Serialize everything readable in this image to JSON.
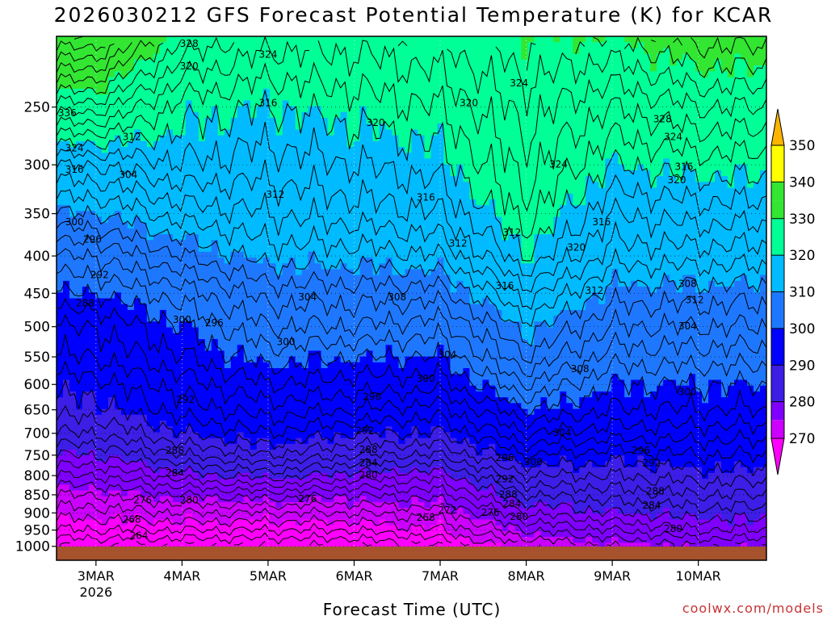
{
  "title": "2026030212 GFS Forecast Potential Temperature (K) for KCAR",
  "xlabel": "Forecast Time (UTC)",
  "credit": "coolwx.com/models",
  "chart_data": {
    "type": "contour",
    "title": "2026030212 GFS Forecast Potential Temperature (K) for KCAR",
    "xlabel": "Forecast Time (UTC)",
    "ylabel": "",
    "y_axis": "pressure (hPa), log scale, inverted",
    "ylim": [
      1000,
      200
    ],
    "y_ticks": [
      250,
      300,
      350,
      400,
      450,
      500,
      550,
      600,
      650,
      700,
      750,
      800,
      850,
      900,
      950,
      1000
    ],
    "x_ticks": [
      "3MAR",
      "4MAR",
      "5MAR",
      "6MAR",
      "7MAR",
      "8MAR",
      "9MAR",
      "10MAR"
    ],
    "x_ticks_sub": [
      "2026",
      "",
      "",
      "",
      "",
      "",
      "",
      ""
    ],
    "colorbar": {
      "labels": [
        270,
        280,
        290,
        300,
        310,
        320,
        330,
        340,
        350
      ],
      "colors": [
        "#ff00ff",
        "#cc00ff",
        "#8000ff",
        "#3c1ee6",
        "#0000ff",
        "#1e78ff",
        "#00bbff",
        "#00ff96",
        "#32e632",
        "#b4ff1e",
        "#ffff00",
        "#ffb400"
      ],
      "extend": "both"
    },
    "grid": true,
    "contour_interval": 2,
    "profiles_x": [
      0,
      24,
      48,
      72,
      96,
      120,
      144,
      168,
      186
    ],
    "profiles": [
      {
        "x": 0,
        "p": [
          1000,
          950,
          900,
          850,
          800,
          750,
          700,
          650,
          600,
          550,
          500,
          450,
          400,
          350,
          300,
          250,
          200
        ],
        "theta": [
          264,
          268,
          271,
          274,
          278,
          282,
          286,
          289,
          291,
          294,
          296,
          300,
          304,
          310,
          316,
          327,
          340
        ]
      },
      {
        "x": 24,
        "p": [
          1000,
          950,
          900,
          850,
          800,
          750,
          700,
          650,
          600,
          550,
          500,
          450,
          400,
          350,
          300,
          250,
          200
        ],
        "theta": [
          264,
          268,
          272,
          276,
          281,
          286,
          290,
          293,
          295,
          298,
          300,
          303,
          308,
          313,
          318,
          321,
          328
        ]
      },
      {
        "x": 48,
        "p": [
          1000,
          950,
          900,
          850,
          800,
          750,
          700,
          650,
          600,
          550,
          500,
          450,
          400,
          350,
          300,
          250,
          200
        ],
        "theta": [
          264,
          268,
          272,
          277,
          283,
          288,
          292,
          295,
          298,
          301,
          304,
          307,
          311,
          314,
          317,
          320,
          325
        ]
      },
      {
        "x": 72,
        "p": [
          1000,
          950,
          900,
          850,
          800,
          750,
          700,
          650,
          600,
          550,
          500,
          450,
          400,
          350,
          300,
          250,
          200
        ],
        "theta": [
          264,
          268,
          272,
          276,
          281,
          286,
          290,
          294,
          297,
          300,
          304,
          307,
          311,
          315,
          318,
          321,
          325
        ]
      },
      {
        "x": 96,
        "p": [
          1000,
          950,
          900,
          850,
          800,
          750,
          700,
          650,
          600,
          550,
          500,
          450,
          400,
          350,
          300,
          250,
          200
        ],
        "theta": [
          266,
          270,
          273,
          277,
          281,
          286,
          290,
          293,
          297,
          300,
          303,
          307,
          312,
          316,
          319,
          322,
          326
        ]
      },
      {
        "x": 120,
        "p": [
          1000,
          950,
          900,
          850,
          800,
          750,
          700,
          650,
          600,
          550,
          500,
          450,
          400,
          350,
          300,
          250,
          200
        ],
        "theta": [
          272,
          276,
          280,
          284,
          288,
          292,
          296,
          300,
          304,
          308,
          311,
          315,
          320,
          323,
          325,
          327,
          330
        ]
      },
      {
        "x": 144,
        "p": [
          1000,
          950,
          900,
          850,
          800,
          750,
          700,
          650,
          600,
          550,
          500,
          450,
          400,
          350,
          300,
          250,
          200
        ],
        "theta": [
          274,
          278,
          282,
          285,
          288,
          291,
          295,
          298,
          300,
          303,
          306,
          309,
          313,
          316,
          320,
          324,
          330
        ]
      },
      {
        "x": 168,
        "p": [
          1000,
          950,
          900,
          850,
          800,
          750,
          700,
          650,
          600,
          550,
          500,
          450,
          400,
          350,
          300,
          250,
          200
        ],
        "theta": [
          276,
          280,
          283,
          286,
          289,
          292,
          295,
          298,
          300,
          303,
          306,
          309,
          313,
          317,
          321,
          326,
          333
        ]
      },
      {
        "x": 186,
        "p": [
          1000,
          950,
          900,
          850,
          800,
          750,
          700,
          650,
          600,
          550,
          500,
          450,
          400,
          350,
          300,
          250,
          200
        ],
        "theta": [
          276,
          280,
          283,
          286,
          289,
          292,
          295,
          298,
          300,
          303,
          306,
          309,
          313,
          317,
          321,
          326,
          333
        ]
      }
    ],
    "contour_labels": [
      {
        "text": "336",
        "x": -8,
        "p": 255
      },
      {
        "text": "324",
        "x": -6,
        "p": 285
      },
      {
        "text": "316",
        "x": -6,
        "p": 305
      },
      {
        "text": "300",
        "x": -6,
        "p": 360
      },
      {
        "text": "296",
        "x": -1,
        "p": 380
      },
      {
        "text": "292",
        "x": 1,
        "p": 425
      },
      {
        "text": "288",
        "x": -3,
        "p": 465
      },
      {
        "text": "312",
        "x": 10,
        "p": 275
      },
      {
        "text": "304",
        "x": 9,
        "p": 310
      },
      {
        "text": "328",
        "x": 26,
        "p": 205
      },
      {
        "text": "320",
        "x": 26,
        "p": 220
      },
      {
        "text": "324",
        "x": 48,
        "p": 212
      },
      {
        "text": "316",
        "x": 48,
        "p": 247
      },
      {
        "text": "312",
        "x": 50,
        "p": 330
      },
      {
        "text": "320",
        "x": 78,
        "p": 263
      },
      {
        "text": "320",
        "x": 104,
        "p": 247
      },
      {
        "text": "324",
        "x": 118,
        "p": 232
      },
      {
        "text": "316",
        "x": 92,
        "p": 333
      },
      {
        "text": "312",
        "x": 101,
        "p": 385
      },
      {
        "text": "308",
        "x": 84,
        "p": 456
      },
      {
        "text": "304",
        "x": 59,
        "p": 456
      },
      {
        "text": "300",
        "x": 24,
        "p": 490
      },
      {
        "text": "296",
        "x": 33,
        "p": 495
      },
      {
        "text": "300",
        "x": 53,
        "p": 525
      },
      {
        "text": "304",
        "x": 98,
        "p": 547
      },
      {
        "text": "300",
        "x": 92,
        "p": 590
      },
      {
        "text": "296",
        "x": 77,
        "p": 625
      },
      {
        "text": "292",
        "x": 75,
        "p": 695
      },
      {
        "text": "292",
        "x": 25,
        "p": 630
      },
      {
        "text": "288",
        "x": 22,
        "p": 740
      },
      {
        "text": "284",
        "x": 22,
        "p": 795
      },
      {
        "text": "276",
        "x": 13,
        "p": 865
      },
      {
        "text": "280",
        "x": 26,
        "p": 865
      },
      {
        "text": "268",
        "x": 10,
        "p": 920
      },
      {
        "text": "264",
        "x": 12,
        "p": 968
      },
      {
        "text": "288",
        "x": 76,
        "p": 738
      },
      {
        "text": "284",
        "x": 76,
        "p": 770
      },
      {
        "text": "280",
        "x": 76,
        "p": 800
      },
      {
        "text": "276",
        "x": 59,
        "p": 862
      },
      {
        "text": "268",
        "x": 92,
        "p": 914
      },
      {
        "text": "272",
        "x": 98,
        "p": 893
      },
      {
        "text": "276",
        "x": 110,
        "p": 900
      },
      {
        "text": "284",
        "x": 116,
        "p": 875
      },
      {
        "text": "280",
        "x": 118,
        "p": 912
      },
      {
        "text": "288",
        "x": 115,
        "p": 850
      },
      {
        "text": "292",
        "x": 114,
        "p": 810
      },
      {
        "text": "296",
        "x": 114,
        "p": 757
      },
      {
        "text": "300",
        "x": 122,
        "p": 767
      },
      {
        "text": "304",
        "x": 130,
        "p": 700
      },
      {
        "text": "308",
        "x": 135,
        "p": 572
      },
      {
        "text": "312",
        "x": 139,
        "p": 447
      },
      {
        "text": "316",
        "x": 114,
        "p": 440
      },
      {
        "text": "320",
        "x": 134,
        "p": 390
      },
      {
        "text": "316",
        "x": 141,
        "p": 360
      },
      {
        "text": "312",
        "x": 116,
        "p": 372
      },
      {
        "text": "316",
        "x": 164,
        "p": 302
      },
      {
        "text": "320",
        "x": 162,
        "p": 315
      },
      {
        "text": "324",
        "x": 161,
        "p": 275
      },
      {
        "text": "328",
        "x": 158,
        "p": 260
      },
      {
        "text": "324",
        "x": 129,
        "p": 300
      },
      {
        "text": "308",
        "x": 165,
        "p": 437
      },
      {
        "text": "312",
        "x": 167,
        "p": 460
      },
      {
        "text": "304",
        "x": 165,
        "p": 500
      },
      {
        "text": "300",
        "x": 165,
        "p": 615
      },
      {
        "text": "296",
        "x": 152,
        "p": 740
      },
      {
        "text": "292",
        "x": 155,
        "p": 770
      },
      {
        "text": "288",
        "x": 156,
        "p": 842
      },
      {
        "text": "284",
        "x": 155,
        "p": 880
      },
      {
        "text": "280",
        "x": 161,
        "p": 947
      }
    ]
  }
}
